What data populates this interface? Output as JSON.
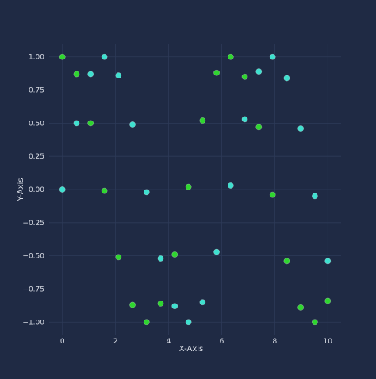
{
  "chart_data": {
    "type": "scatter",
    "title": "",
    "xlabel": "X-Axis",
    "ylabel": "Y-Axis",
    "xlim": [
      -0.5,
      10.5
    ],
    "ylim": [
      -1.1,
      1.1
    ],
    "grid": true,
    "legend": "none",
    "x_ticks": [
      "0",
      "2",
      "4",
      "6",
      "8",
      "10"
    ],
    "x_tick_values": [
      0,
      2,
      4,
      6,
      8,
      10
    ],
    "y_ticks": [
      "1.00",
      "0.75",
      "0.50",
      "0.25",
      "0.00",
      "−0.25",
      "−0.50",
      "−0.75",
      "−1.00"
    ],
    "y_tick_values": [
      1.0,
      0.75,
      0.5,
      0.25,
      0.0,
      -0.25,
      -0.5,
      -0.75,
      -1.0
    ],
    "series": [
      {
        "color": "#2fd62f",
        "points": [
          [
            0.0,
            1.0
          ],
          [
            0.53,
            0.87
          ],
          [
            1.06,
            0.5
          ],
          [
            1.58,
            -0.01
          ],
          [
            2.11,
            -0.51
          ],
          [
            2.64,
            -0.87
          ],
          [
            3.17,
            -1.0
          ],
          [
            3.7,
            -0.86
          ],
          [
            4.23,
            -0.49
          ],
          [
            4.75,
            0.02
          ],
          [
            5.28,
            0.52
          ],
          [
            5.81,
            0.88
          ],
          [
            6.34,
            1.0
          ],
          [
            6.87,
            0.85
          ],
          [
            7.4,
            0.47
          ],
          [
            7.92,
            -0.04
          ],
          [
            8.45,
            -0.54
          ],
          [
            8.98,
            -0.89
          ],
          [
            9.51,
            -1.0
          ],
          [
            10.0,
            -0.84
          ]
        ]
      },
      {
        "color": "#3ee0cf",
        "points": [
          [
            0.0,
            0.0
          ],
          [
            0.53,
            0.5
          ],
          [
            1.06,
            0.87
          ],
          [
            1.58,
            1.0
          ],
          [
            2.11,
            0.86
          ],
          [
            2.64,
            0.49
          ],
          [
            3.17,
            -0.02
          ],
          [
            3.7,
            -0.52
          ],
          [
            4.23,
            -0.88
          ],
          [
            4.75,
            -1.0
          ],
          [
            5.28,
            -0.85
          ],
          [
            5.81,
            -0.47
          ],
          [
            6.34,
            0.03
          ],
          [
            6.87,
            0.53
          ],
          [
            7.4,
            0.89
          ],
          [
            7.92,
            1.0
          ],
          [
            8.45,
            0.84
          ],
          [
            8.98,
            0.46
          ],
          [
            9.51,
            -0.05
          ],
          [
            10.0,
            -0.54
          ]
        ]
      }
    ]
  },
  "colors": {
    "background": "#1f2a44",
    "grid": "#2d3a58",
    "text": "#d9dde6"
  }
}
